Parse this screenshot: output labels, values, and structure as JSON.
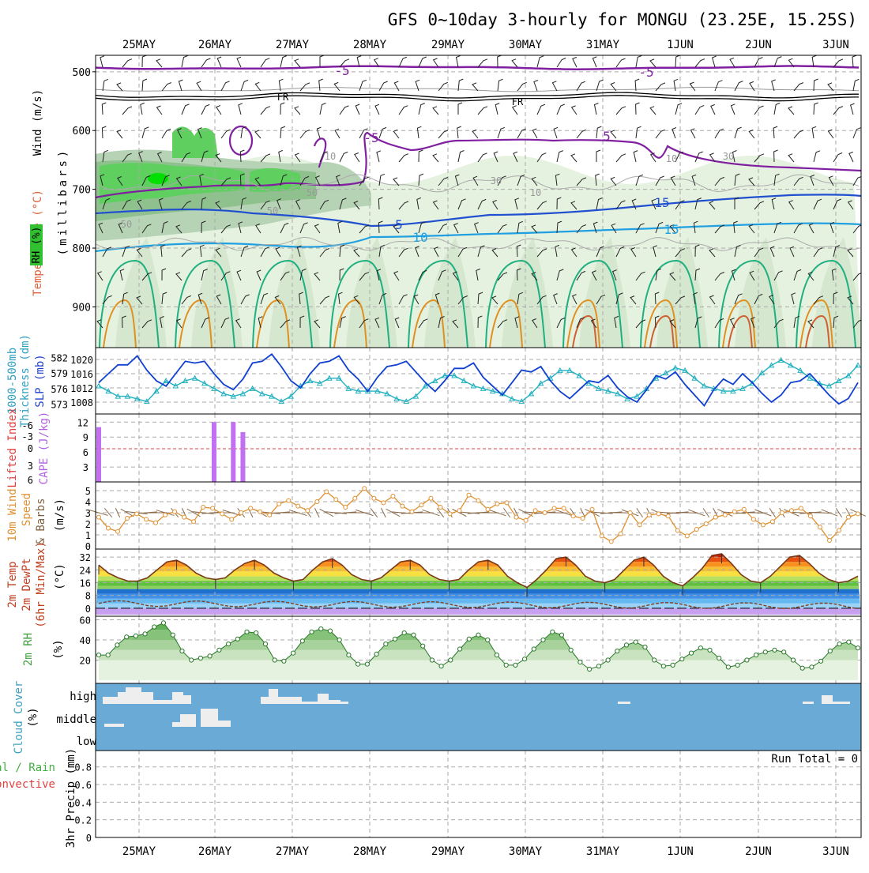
{
  "title": "GFS 0~10day 3-hourly for MONGU (23.25E, 15.25S)",
  "days": [
    "25MAY",
    "26MAY",
    "27MAY",
    "28MAY",
    "29MAY",
    "30MAY",
    "31MAY",
    "1JUN",
    "2JUN",
    "3JUN"
  ],
  "panels": {
    "sounding": {
      "ylabel_wind": "Wind (m/s)",
      "ylabel_temp": "Temperature (°C)",
      "ylabel_unit": "(millibars)",
      "ylabel_rh": "RH (%)",
      "yticks": [
        "500",
        "600",
        "700",
        "800",
        "900"
      ],
      "contour_labels": [
        "-5",
        "-5",
        "FR",
        "FR",
        "-5",
        "5",
        "5",
        "10",
        "15",
        "10",
        "30",
        "10",
        "30",
        "10",
        "50",
        "50",
        "50",
        "15"
      ]
    },
    "slp": {
      "ylabel_left": "1000-500mb",
      "ylabel_left2": "Thickness (dm)",
      "ylabel_right": "SLP (mb)",
      "left_ticks": [
        "582",
        "579",
        "576",
        "573"
      ],
      "right_ticks": [
        "1020",
        "1016",
        "1012",
        "1008"
      ]
    },
    "cape": {
      "ylabel_li": "Lifted Index",
      "ylabel_cape": "CAPE (J/kg)",
      "li_ticks": [
        "-6",
        "-3",
        "0",
        "3",
        "6"
      ],
      "cape_ticks": [
        "12",
        "9",
        "6",
        "3"
      ]
    },
    "wind10": {
      "ylabel1": "10m Wind",
      "ylabel2": "Speed",
      "ylabel3": "& Barbs",
      "unit": "(m/s)",
      "ticks": [
        "5",
        "4",
        "3",
        "2",
        "1",
        "0"
      ]
    },
    "temp2m": {
      "ylabel1": "2m Temp",
      "ylabel2": "2m DewPt",
      "ylabel3": "(6hr Min/Max)",
      "unit": "(°C)",
      "ticks": [
        "32",
        "24",
        "16",
        "8",
        "0"
      ]
    },
    "rh2m": {
      "ylabel": "2m RH",
      "unit": "(%)",
      "ticks": [
        "60",
        "40",
        "20"
      ]
    },
    "cloud": {
      "ylabel": "Cloud Cover",
      "unit": "(%)",
      "levels": [
        "high",
        "middle",
        "low"
      ]
    },
    "precip": {
      "ylabel1": "Total / Rain",
      "ylabel2": "Convective",
      "ylabel3": "3hr Precip (mm)",
      "ticks": [
        "0.8",
        "0.6",
        "0.4",
        "0.2",
        "0"
      ],
      "run_total": "Run Total = 0"
    }
  },
  "colors": {
    "slp": "#1040d0",
    "thickness": "#20b0c0",
    "cape_bar": "#c070f0",
    "li_zero": "#e04040",
    "wind_line": "#e09030",
    "rh_fill": "#50b050",
    "cloud_bg": "#6aaad6",
    "cloud_fill": "#eeeeee",
    "contour_m5": "#8020a0",
    "contour_10": "#2050d0",
    "contour_15": "#20a0e0"
  },
  "chart_data": [
    {
      "type": "line",
      "title": "1000-500mb Thickness / SLP",
      "series": [
        {
          "name": "SLP (mb)",
          "values": [
            1013.5,
            1016,
            1018.5,
            1018.5,
            1021,
            1017,
            1014,
            1012.5,
            1016,
            1019.5,
            1019,
            1019.5,
            1016,
            1013,
            1011.5,
            1014.5,
            1019,
            1019.5,
            1021.5,
            1018,
            1014,
            1012,
            1016,
            1019,
            1019.5,
            1021,
            1017,
            1014.5,
            1011,
            1015,
            1018,
            1018.5,
            1019.5,
            1016.5,
            1013.5,
            1011,
            1014,
            1017.5,
            1017.5,
            1019,
            1015,
            1012.5,
            1010,
            1013.5,
            1017,
            1016.5,
            1018,
            1014,
            1011,
            1009,
            1011.5,
            1014,
            1013.5,
            1015.5,
            1012,
            1009.5,
            1008,
            1011.5,
            1015.5,
            1014.5,
            1016.5,
            1013,
            1010,
            1007,
            1011.5,
            1014.5,
            1013,
            1016,
            1013.5,
            1010.5,
            1008,
            1010,
            1013.5,
            1014,
            1016,
            1013,
            1010,
            1007.5,
            1009,
            1013.5
          ]
        },
        {
          "name": "1000-500mb Thickness (dm)",
          "values": [
            576.5,
            575.5,
            574.5,
            574.5,
            574,
            573.5,
            575.5,
            577.5,
            576.5,
            577.5,
            578,
            577,
            576,
            575,
            574.5,
            575,
            576,
            575,
            574.5,
            573.5,
            574.5,
            576.5,
            577.5,
            577,
            578,
            578,
            576,
            575.5,
            575.5,
            575.5,
            575,
            574,
            573.5,
            574.5,
            576.5,
            577.5,
            578.5,
            578.5,
            577.5,
            576.5,
            576,
            575.5,
            575,
            574,
            573.5,
            575,
            577,
            578,
            579.5,
            579.5,
            578.5,
            577,
            576,
            575.5,
            575,
            574,
            574.5,
            576,
            578,
            579,
            580,
            579.5,
            578,
            576.5,
            576,
            575.5,
            575.5,
            576,
            577,
            579,
            580.5,
            581.5,
            580.5,
            579.5,
            578,
            577,
            576.5,
            577.5,
            578.5,
            580.5
          ]
        }
      ],
      "ylim_slp": [
        1006,
        1022
      ],
      "ylim_thickness": [
        572,
        583
      ]
    },
    {
      "type": "bar",
      "title": "CAPE (J/kg)",
      "x": [
        0,
        11,
        12,
        14,
        15,
        16
      ],
      "values": [
        11,
        0,
        12,
        12,
        10,
        0
      ],
      "ylim": [
        0,
        13
      ]
    },
    {
      "type": "line",
      "title": "10m Wind Speed",
      "values": [
        2.6,
        1.6,
        1.3,
        2.5,
        2.9,
        2.4,
        2.1,
        2.8,
        3.1,
        2.6,
        2.2,
        3.5,
        3.4,
        2.9,
        2.4,
        3.0,
        3.4,
        3.1,
        2.8,
        3.8,
        4.1,
        3.6,
        3.2,
        4.0,
        4.9,
        4.2,
        3.5,
        4.3,
        5.2,
        4.3,
        3.9,
        4.5,
        3.6,
        3.1,
        3.7,
        4.3,
        3.5,
        2.9,
        3.2,
        4.6,
        4.1,
        3.3,
        3.8,
        3.9,
        2.6,
        2.3,
        3.2,
        3.0,
        3.4,
        3.4,
        2.7,
        2.5,
        3.3,
        0.9,
        0.4,
        1.1,
        3.0,
        1.9,
        2.8,
        2.9,
        2.7,
        1.4,
        0.9,
        1.5,
        2.0,
        2.6,
        2.8,
        3.1,
        3.3,
        2.4,
        1.9,
        2.2,
        3.0,
        3.2,
        3.4,
        2.7,
        1.7,
        0.5,
        1.4,
        2.6,
        2.9
      ],
      "ylim": [
        0,
        5.5
      ]
    },
    {
      "type": "area",
      "title": "2m Temp (°C)",
      "values": [
        27,
        22,
        19,
        17,
        17,
        19,
        24,
        29,
        30,
        27,
        22,
        19,
        18,
        19,
        24,
        28,
        30,
        27,
        22,
        19,
        17,
        18,
        24,
        29,
        31,
        27,
        21,
        18,
        17,
        19,
        24,
        29,
        30,
        27,
        21,
        18,
        17,
        18,
        24,
        29,
        30,
        27,
        20,
        16,
        13,
        18,
        24,
        31,
        32,
        27,
        20,
        17,
        16,
        18,
        24,
        30,
        32,
        27,
        20,
        16,
        14,
        19,
        25,
        33,
        34,
        28,
        21,
        17,
        16,
        20,
        26,
        32,
        33,
        28,
        22,
        18,
        16,
        17,
        20
      ],
      "ylim": [
        -4,
        36
      ]
    },
    {
      "type": "area",
      "title": "2m RH (%)",
      "values": [
        25,
        25,
        35,
        43,
        44,
        46,
        53,
        57,
        45,
        29,
        20,
        22,
        24,
        30,
        36,
        41,
        48,
        47,
        36,
        20,
        19,
        27,
        39,
        48,
        51,
        49,
        40,
        25,
        16,
        16,
        26,
        36,
        41,
        47,
        45,
        34,
        20,
        14,
        20,
        31,
        41,
        45,
        40,
        25,
        15,
        15,
        21,
        31,
        40,
        48,
        45,
        30,
        18,
        11,
        14,
        20,
        29,
        35,
        38,
        33,
        20,
        14,
        15,
        21,
        27,
        32,
        30,
        22,
        13,
        15,
        20,
        25,
        28,
        30,
        28,
        20,
        12,
        13,
        19,
        29,
        36,
        38,
        32
      ],
      "ylim": [
        0,
        62
      ]
    },
    {
      "type": "bar",
      "title": "3hr Precip (mm)",
      "values": [],
      "ylim": [
        0,
        0.95
      ]
    }
  ]
}
